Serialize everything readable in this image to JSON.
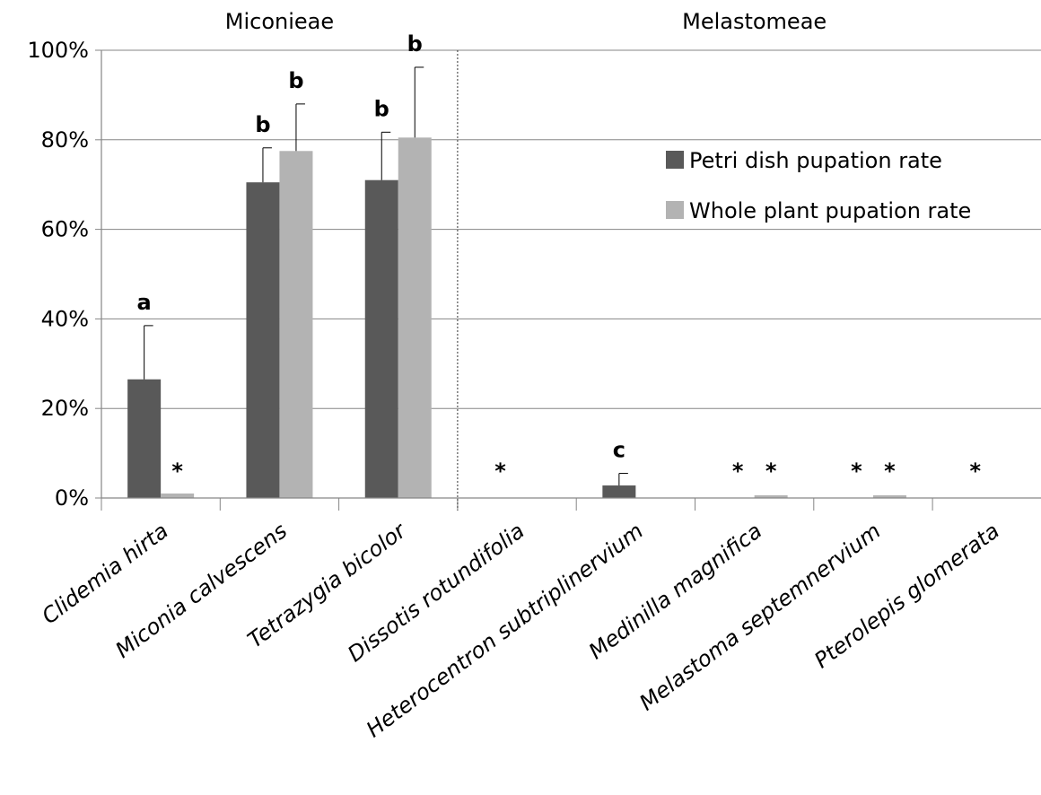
{
  "chart_data": {
    "type": "bar",
    "group_labels": [
      "Miconieae",
      "Melastomeae"
    ],
    "categories": [
      "Clidemia hirta",
      "Miconia calvescens",
      "Tetrazygia bicolor",
      "Dissotis rotundifolia",
      "Heterocentron subtriplinervium",
      "Medinilla magnifica",
      "Melastoma septemnervium",
      "Pterolepis glomerata"
    ],
    "category_groups": [
      0,
      0,
      0,
      1,
      1,
      1,
      1,
      1
    ],
    "y_ticks": [
      "0%",
      "20%",
      "40%",
      "60%",
      "80%",
      "100%"
    ],
    "ylim": [
      0,
      100
    ],
    "grid": true,
    "legend_position": "right",
    "series": [
      {
        "name": "Petri dish pupation rate",
        "color": "#595959",
        "values": [
          26.5,
          70.5,
          71,
          0,
          2.8,
          0,
          0,
          0
        ],
        "errors": [
          12,
          7.7,
          10.7,
          0,
          2.7,
          0,
          0,
          0
        ],
        "labels": [
          "a",
          "b",
          "b",
          "*",
          "c",
          "*",
          "*",
          "*"
        ]
      },
      {
        "name": "Whole plant pupation rate",
        "color": "#b3b3b3",
        "values": [
          1,
          77.5,
          80.5,
          0,
          0,
          0.6,
          0.6,
          0
        ],
        "errors": [
          0,
          10.5,
          15.7,
          0,
          0,
          0,
          0,
          0
        ],
        "labels": [
          "*",
          "b",
          "b",
          "",
          "",
          "*",
          "*",
          ""
        ]
      }
    ]
  }
}
